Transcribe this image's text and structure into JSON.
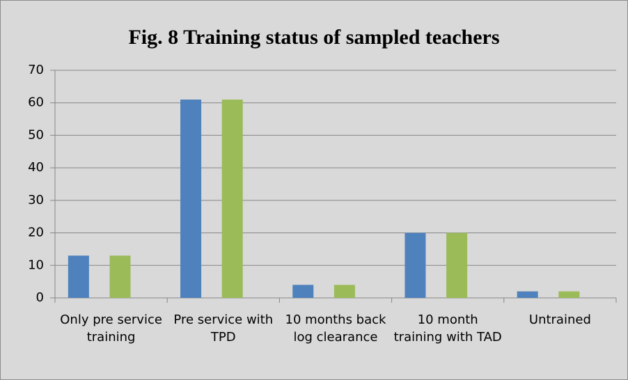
{
  "chart_data": {
    "type": "bar",
    "title": "Fig. 8 Training status of sampled teachers",
    "categories": [
      "Only pre service training",
      "Pre service with TPD",
      "10 months back log clearance",
      "10 month training with TAD",
      "Untrained"
    ],
    "series": [
      {
        "color": "#4f81bd",
        "values": [
          13,
          61,
          4,
          20,
          2
        ]
      },
      {
        "color": "#9bbb59",
        "values": [
          13,
          61,
          4,
          20,
          2
        ]
      }
    ],
    "ylim": [
      0,
      70
    ],
    "yticks": [
      0,
      10,
      20,
      30,
      40,
      50,
      60,
      70
    ],
    "grid": true
  }
}
